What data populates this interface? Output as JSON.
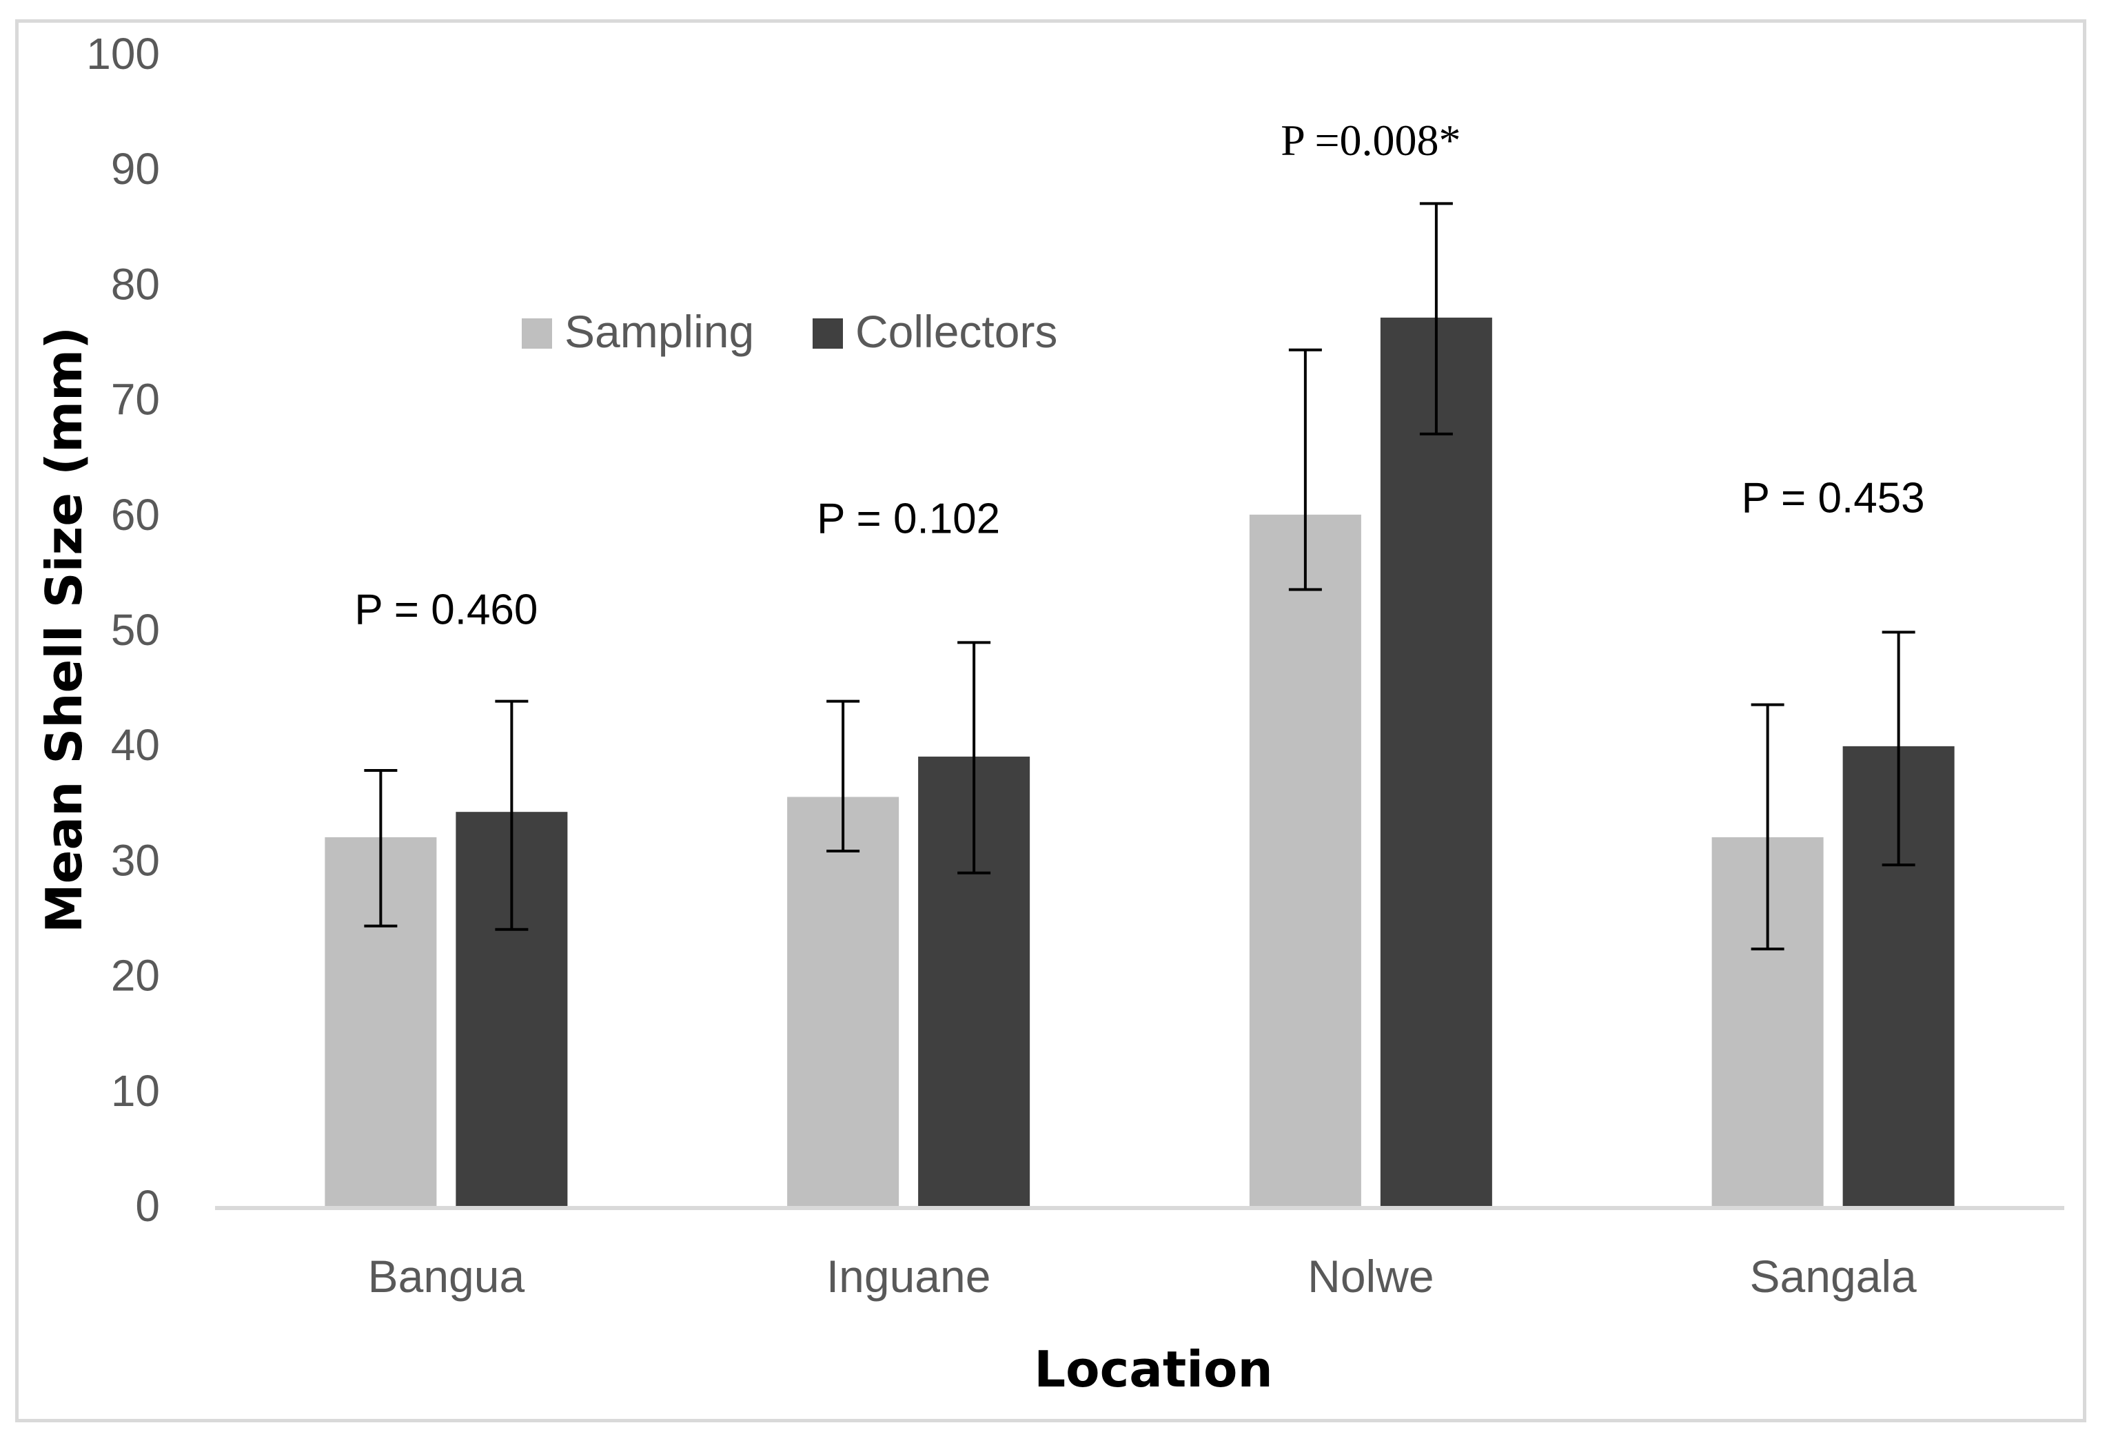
{
  "chart_data": {
    "type": "bar",
    "title": "",
    "xlabel": "Location",
    "ylabel": "Mean Shell Size (mm)",
    "ylim": [
      0,
      100
    ],
    "yticks": [
      0,
      10,
      20,
      30,
      40,
      50,
      60,
      70,
      80,
      90,
      100
    ],
    "categories": [
      "Bangua",
      "Inguane",
      "Nolwe",
      "Sangala"
    ],
    "series": [
      {
        "name": "Sampling",
        "color": "#bfbfbf",
        "values": [
          32,
          35.5,
          60,
          32
        ],
        "error_low": [
          24.3,
          30.8,
          53.5,
          22.3
        ],
        "error_high": [
          37.8,
          43.8,
          74.3,
          43.5
        ]
      },
      {
        "name": "Collectors",
        "color": "#404040",
        "values": [
          34.2,
          39,
          77.1,
          39.9
        ],
        "error_low": [
          24,
          28.9,
          67,
          29.6
        ],
        "error_high": [
          43.8,
          48.9,
          87,
          49.8
        ]
      }
    ],
    "annotations": [
      {
        "text": "P = 0.460",
        "category": "Bangua",
        "y": 50.5,
        "style": "sans"
      },
      {
        "text": "P = 0.102",
        "category": "Inguane",
        "y": 58.4,
        "style": "sans"
      },
      {
        "text": "P =0.008*",
        "category": "Nolwe",
        "y": 91.2,
        "style": "serif"
      },
      {
        "text": "P = 0.453",
        "category": "Sangala",
        "y": 60.2,
        "style": "sans"
      }
    ],
    "legend": {
      "position": "top-left-inside",
      "entries": [
        "Sampling",
        "Collectors"
      ]
    },
    "grid": false
  }
}
